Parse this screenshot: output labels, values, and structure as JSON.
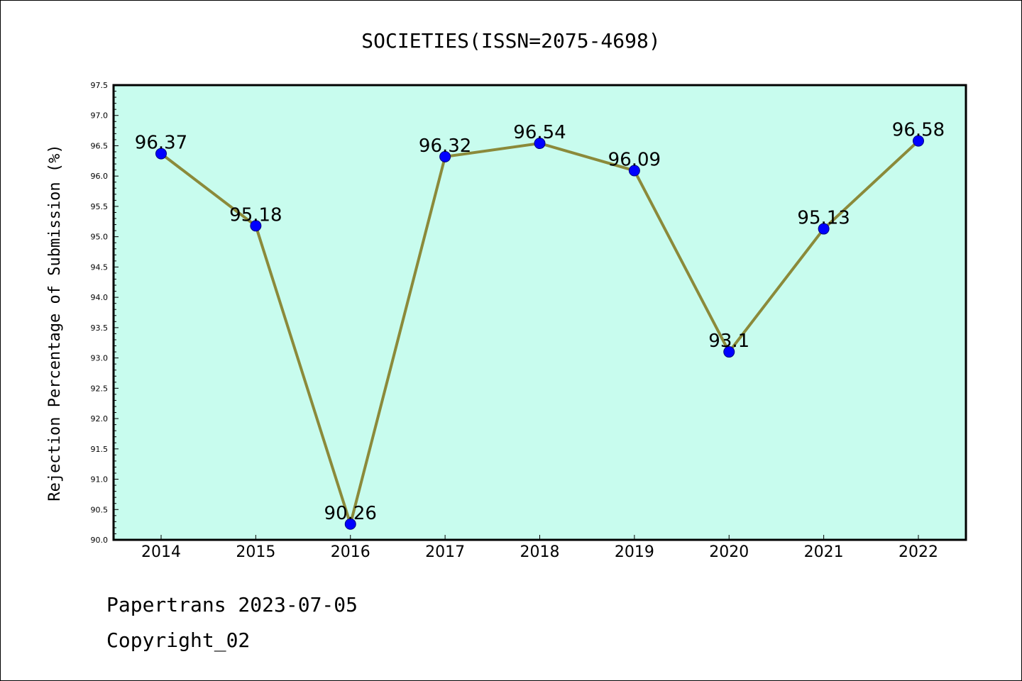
{
  "chart_data": {
    "type": "line",
    "title": "SOCIETIES(ISSN=2075-4698)",
    "xlabel": "",
    "ylabel": "Rejection Percentage of Submission (%)",
    "categories": [
      "2014",
      "2015",
      "2016",
      "2017",
      "2018",
      "2019",
      "2020",
      "2021",
      "2022"
    ],
    "series": [
      {
        "values": [
          96.37,
          95.18,
          90.26,
          96.32,
          96.54,
          96.09,
          93.1,
          95.13,
          96.58
        ],
        "data_labels": [
          "96.37",
          "95.18",
          "90.26",
          "96.32",
          "96.54",
          "96.09",
          "93.1",
          "95.13",
          "96.58"
        ]
      }
    ],
    "ylim": [
      90.0,
      97.5
    ],
    "yticks": [
      "90.0",
      "90.5",
      "91.0",
      "91.5",
      "92.0",
      "92.5",
      "93.0",
      "93.5",
      "94.0",
      "94.5",
      "95.0",
      "95.5",
      "96.0",
      "96.5",
      "97.0",
      "97.5"
    ],
    "grid": false,
    "legend": "none",
    "colors": {
      "plot_background": "#c8fcee",
      "line": "#8b8a3a",
      "marker": "#0000ff"
    }
  },
  "footer": {
    "line1": "Papertrans 2023-07-05",
    "line2": "Copyright_02"
  }
}
